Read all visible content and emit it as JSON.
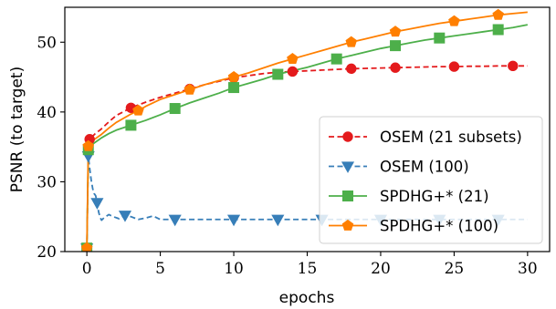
{
  "chart_data": {
    "type": "line",
    "title": "",
    "xlabel": "epochs",
    "ylabel": "PSNR (to target)",
    "xlim": [
      -1.5,
      31.5
    ],
    "ylim": [
      20,
      55
    ],
    "xticks": [
      0,
      5,
      10,
      15,
      20,
      25,
      30
    ],
    "yticks": [
      20,
      30,
      40,
      50
    ],
    "legend_placement": "lower-right",
    "grid": false,
    "series": [
      {
        "name": "OSEM (21 subsets)",
        "color": "#e41a1c",
        "linestyle": "dashed",
        "marker": "circle",
        "x": [
          0.05,
          0.19,
          0.38,
          0.57,
          0.76,
          0.95,
          1.5,
          2,
          3,
          4,
          5,
          6,
          7,
          8,
          9,
          10,
          11,
          12,
          13,
          14,
          15,
          16,
          17,
          18,
          19,
          20,
          21,
          22,
          23,
          24,
          25,
          26,
          27,
          28,
          29,
          30
        ],
        "y": [
          34.0,
          36.1,
          36.5,
          36.9,
          37.2,
          37.5,
          38.6,
          39.5,
          40.6,
          41.4,
          42.1,
          42.7,
          43.3,
          43.9,
          44.4,
          44.9,
          45.2,
          45.5,
          45.7,
          45.8,
          45.9,
          46.0,
          46.1,
          46.2,
          46.25,
          46.3,
          46.35,
          46.4,
          46.45,
          46.5,
          46.5,
          46.55,
          46.55,
          46.6,
          46.6,
          46.6
        ],
        "marker_x": [
          0.19,
          3,
          7,
          10,
          14,
          18,
          21,
          25,
          29
        ]
      },
      {
        "name": "OSEM (100)",
        "color": "#377eb8",
        "linestyle": "dashed",
        "marker": "triangle-down",
        "x": [
          0.0,
          0.1,
          0.2,
          0.3,
          0.4,
          0.5,
          0.6,
          0.7,
          0.8,
          0.9,
          1.0,
          1.2,
          1.5,
          1.8,
          2.2,
          2.6,
          3.0,
          3.5,
          4.0,
          4.5,
          5.0,
          6.0,
          8.0,
          10.0,
          13.0,
          16.0,
          20.0,
          24.0,
          28.0,
          30.0
        ],
        "y": [
          20.5,
          33.7,
          31.8,
          30.2,
          29.0,
          28.3,
          28.0,
          27.0,
          25.7,
          24.9,
          24.5,
          24.9,
          25.3,
          25.0,
          24.7,
          25.2,
          25.0,
          24.6,
          24.8,
          25.1,
          24.6,
          24.6,
          24.6,
          24.6,
          24.6,
          24.6,
          24.6,
          24.6,
          24.6,
          24.6
        ],
        "marker_x": [
          0.0,
          0.1,
          0.7,
          2.6,
          6.0,
          10.0,
          13.0,
          16.0,
          20.0,
          24.0,
          28.0
        ]
      },
      {
        "name": "SPDHG+* (21)",
        "color": "#4daf4a",
        "linestyle": "solid",
        "marker": "square",
        "x": [
          0.0,
          0.1,
          0.2,
          0.4,
          0.6,
          0.8,
          1.0,
          1.5,
          2.0,
          3.0,
          4.0,
          5.0,
          6.0,
          7.0,
          8.0,
          9.0,
          10.0,
          11.0,
          12.0,
          13.0,
          14.0,
          15.0,
          16.0,
          17.0,
          18.0,
          19.0,
          20.0,
          21.0,
          22.0,
          23.0,
          24.0,
          25.0,
          26.0,
          27.0,
          28.0,
          29.0,
          30.0
        ],
        "y": [
          20.5,
          34.6,
          35.0,
          35.4,
          35.7,
          36.0,
          36.3,
          36.9,
          37.4,
          38.1,
          38.8,
          39.6,
          40.5,
          41.3,
          42.0,
          42.7,
          43.5,
          44.1,
          44.7,
          45.4,
          45.9,
          46.4,
          47.0,
          47.6,
          48.1,
          48.6,
          49.1,
          49.5,
          49.9,
          50.3,
          50.6,
          50.9,
          51.2,
          51.5,
          51.8,
          52.1,
          52.5
        ],
        "marker_x": [
          0.0,
          0.1,
          3.0,
          6.0,
          10.0,
          13.0,
          17.0,
          21.0,
          24.0,
          28.0
        ]
      },
      {
        "name": "SPDHG+* (100)",
        "color": "#ff7f00",
        "linestyle": "solid",
        "marker": "pentagon",
        "x": [
          0.0,
          0.1,
          0.2,
          0.4,
          0.6,
          0.8,
          1.0,
          1.5,
          2.0,
          3.0,
          3.5,
          4.0,
          5.0,
          6.0,
          7.0,
          8.0,
          9.0,
          10.0,
          11.0,
          12.0,
          13.0,
          14.0,
          15.0,
          16.0,
          17.0,
          18.0,
          19.0,
          20.0,
          21.0,
          22.0,
          23.0,
          24.0,
          25.0,
          26.0,
          27.0,
          28.0,
          29.0,
          30.0
        ],
        "y": [
          20.5,
          35.1,
          35.5,
          35.9,
          36.2,
          36.5,
          36.8,
          37.7,
          38.5,
          39.7,
          40.2,
          40.8,
          41.8,
          42.5,
          43.2,
          43.9,
          44.5,
          45.0,
          45.6,
          46.3,
          47.0,
          47.6,
          48.2,
          48.8,
          49.4,
          50.0,
          50.5,
          51.0,
          51.5,
          51.9,
          52.3,
          52.7,
          53.0,
          53.3,
          53.6,
          53.9,
          54.1,
          54.3
        ],
        "marker_x": [
          0.0,
          0.1,
          3.5,
          7.0,
          10.0,
          14.0,
          18.0,
          21.0,
          25.0,
          28.0
        ]
      }
    ],
    "legend": [
      {
        "label": "OSEM (21 subsets)",
        "series": 0
      },
      {
        "label": "OSEM (100)",
        "series": 1
      },
      {
        "label": "SPDHG+* (21)",
        "series": 2
      },
      {
        "label": "SPDHG+* (100)",
        "series": 3
      }
    ]
  }
}
